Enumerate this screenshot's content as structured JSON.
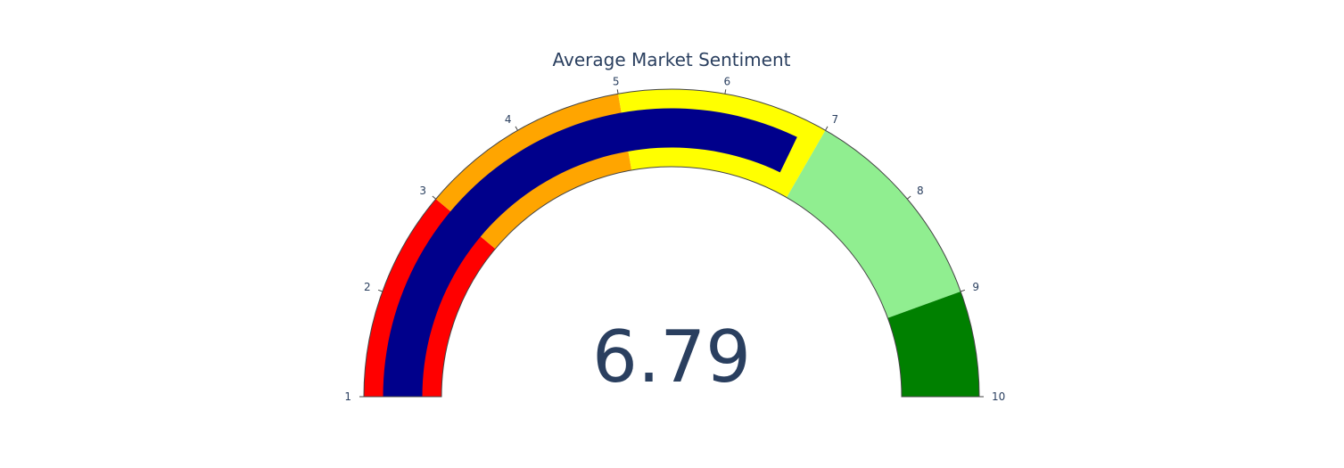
{
  "chart_data": {
    "type": "gauge",
    "title": "Average Market Sentiment",
    "value": 6.79,
    "value_label": "6.79",
    "range": [
      1,
      10
    ],
    "ticks": [
      "1",
      "2",
      "3",
      "4",
      "5",
      "6",
      "7",
      "8",
      "9",
      "10"
    ],
    "steps": [
      {
        "range": [
          1,
          3
        ],
        "color": "#ff0000"
      },
      {
        "range": [
          3,
          5
        ],
        "color": "#ffa500"
      },
      {
        "range": [
          5,
          7
        ],
        "color": "#ffff00"
      },
      {
        "range": [
          7,
          9
        ],
        "color": "#90ee90"
      },
      {
        "range": [
          9,
          10
        ],
        "color": "#008000"
      }
    ],
    "bar_color": "#00008b"
  }
}
